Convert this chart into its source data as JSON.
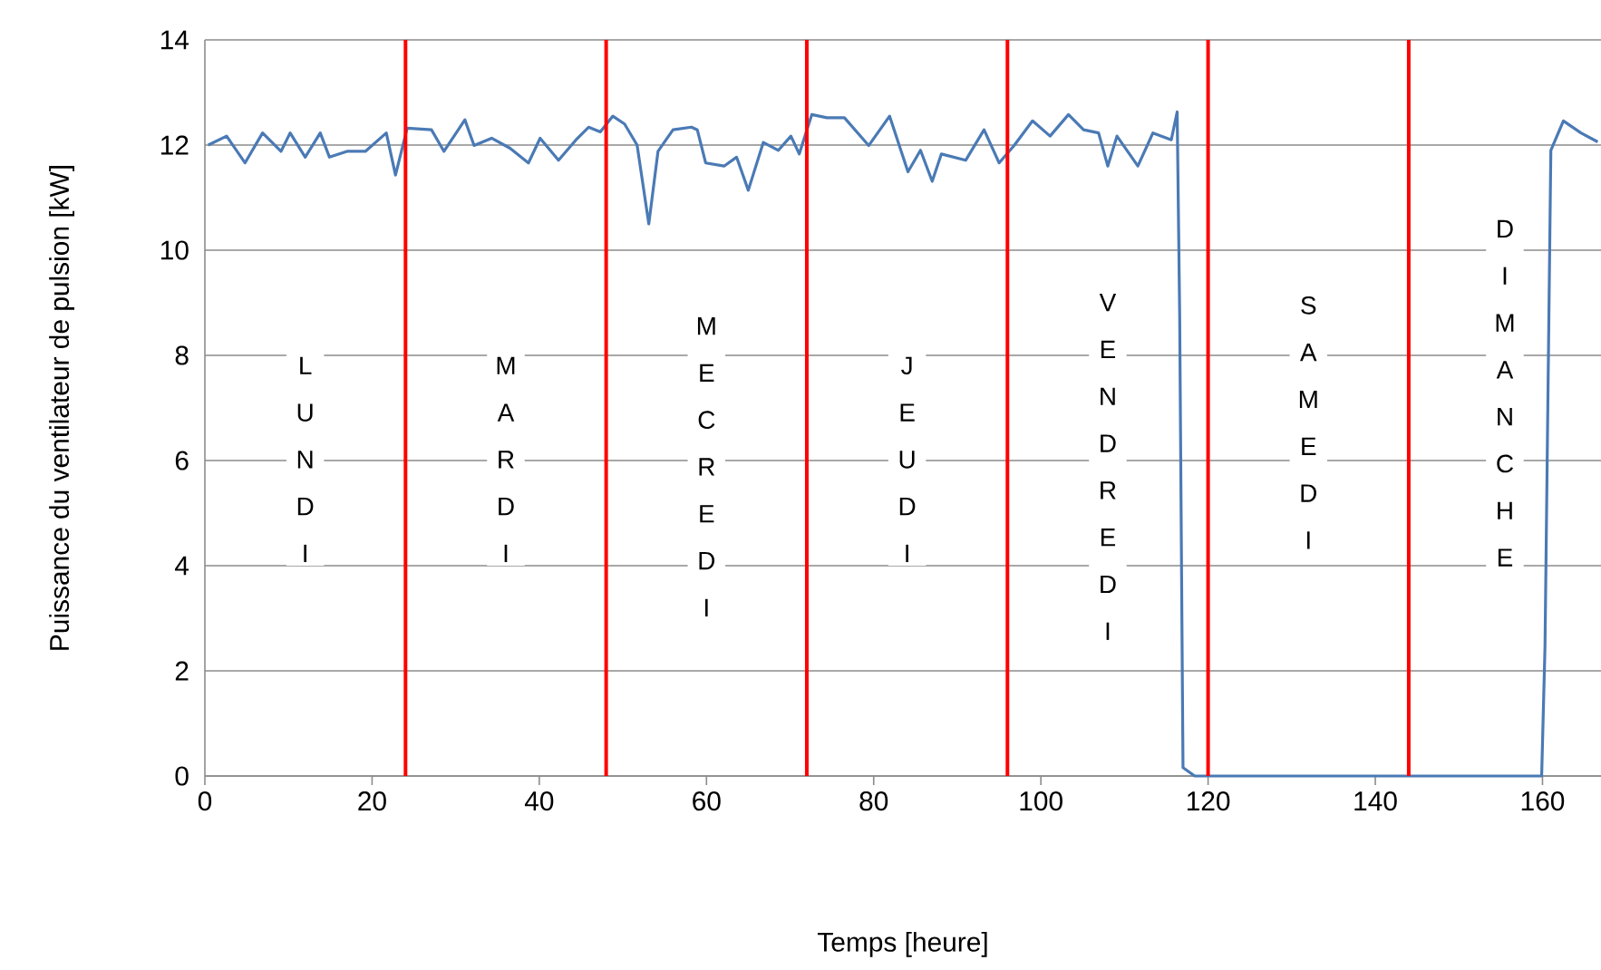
{
  "chart_data": {
    "type": "line",
    "xlabel": "Temps [heure]",
    "ylabel": "Puissance du ventilateur de pulsion [kW]",
    "xlim": [
      0,
      167
    ],
    "ylim": [
      0,
      14
    ],
    "xticks": [
      0,
      20,
      40,
      60,
      80,
      100,
      120,
      140,
      160
    ],
    "yticks": [
      0,
      2,
      4,
      6,
      8,
      10,
      12,
      14
    ],
    "grid": "y",
    "series": [
      {
        "color": "#4a7ab5",
        "x": [
          0.4,
          2.6,
          4.8,
          6.9,
          9.1,
          10.2,
          12.0,
          13.8,
          14.9,
          17.0,
          19.2,
          21.7,
          22.8,
          24.2,
          27.1,
          28.6,
          31.1,
          32.2,
          34.3,
          36.5,
          38.7,
          40.1,
          42.3,
          44.4,
          45.9,
          47.3,
          48.8,
          50.2,
          51.7,
          53.1,
          54.2,
          56.0,
          58.2,
          58.9,
          59.9,
          62.1,
          63.6,
          65.0,
          66.8,
          68.6,
          70.1,
          71.1,
          72.6,
          74.4,
          76.5,
          79.4,
          81.9,
          84.1,
          85.6,
          87.0,
          88.1,
          91.0,
          93.2,
          95.0,
          96.8,
          99.0,
          101.1,
          103.3,
          105.1,
          106.9,
          108.0,
          109.1,
          111.6,
          113.4,
          115.6,
          116.3,
          116.6,
          117.0,
          118.4,
          159.9,
          160.3,
          161.0,
          162.5,
          164.6,
          166.6
        ],
        "values": [
          12.0,
          12.17,
          11.66,
          12.23,
          11.88,
          12.23,
          11.77,
          12.23,
          11.77,
          11.88,
          11.88,
          12.23,
          11.43,
          12.32,
          12.29,
          11.88,
          12.48,
          11.99,
          12.13,
          11.94,
          11.66,
          12.13,
          11.71,
          12.1,
          12.34,
          12.25,
          12.55,
          12.4,
          12.0,
          10.5,
          11.88,
          12.29,
          12.34,
          12.29,
          11.66,
          11.6,
          11.77,
          11.14,
          12.05,
          11.9,
          12.17,
          11.83,
          12.58,
          12.52,
          12.52,
          11.99,
          12.55,
          11.49,
          11.9,
          11.31,
          11.83,
          11.71,
          12.29,
          11.66,
          11.99,
          12.46,
          12.17,
          12.58,
          12.29,
          12.23,
          11.6,
          12.17,
          11.6,
          12.23,
          12.1,
          12.63,
          8.78,
          0.16,
          0,
          0,
          2.46,
          11.9,
          12.46,
          12.23,
          12.06
        ]
      }
    ],
    "ref_lines": [
      {
        "axis": "x",
        "value": 24,
        "color": "#ff0000"
      },
      {
        "axis": "x",
        "value": 48,
        "color": "#ff0000"
      },
      {
        "axis": "x",
        "value": 72,
        "color": "#ff0000"
      },
      {
        "axis": "x",
        "value": 96,
        "color": "#ff0000"
      },
      {
        "axis": "x",
        "value": 120,
        "color": "#ff0000"
      },
      {
        "axis": "x",
        "value": 144,
        "color": "#ff0000"
      }
    ],
    "annotations": [
      "LUNDI",
      "MARDI",
      "MECREDI",
      "JEUDI",
      "VENDREDI",
      "SAMEDI",
      "DIMANCHE"
    ]
  }
}
